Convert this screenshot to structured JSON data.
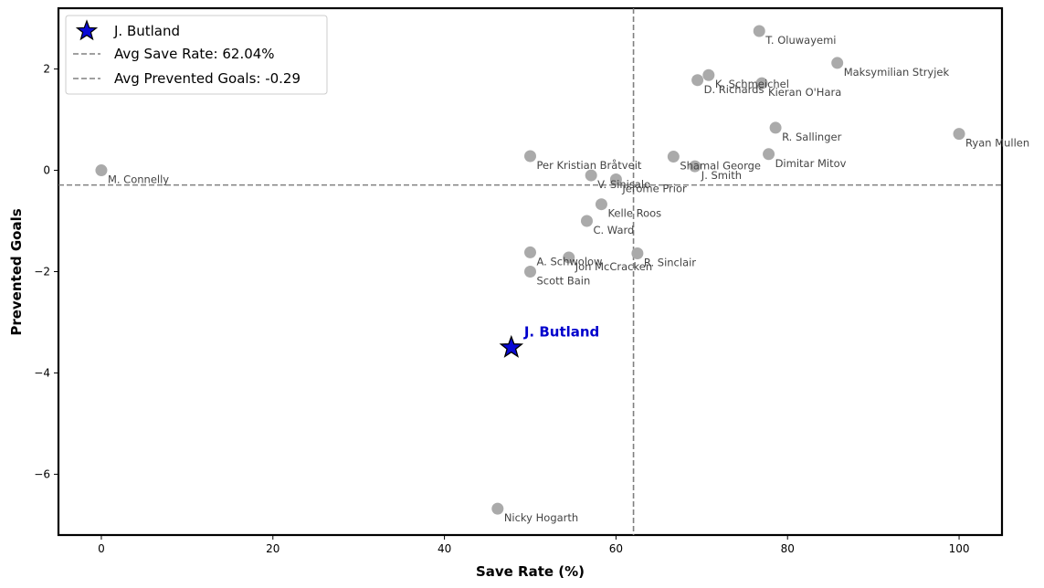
{
  "chart_data": {
    "type": "scatter",
    "xlabel": "Save Rate (%)",
    "ylabel": "Prevented Goals",
    "xlim": [
      -5,
      105
    ],
    "ylim": [
      -7.2,
      3.2
    ],
    "xticks": [
      0,
      20,
      40,
      60,
      80,
      100
    ],
    "yticks": [
      -6,
      -4,
      -2,
      0,
      2
    ],
    "grid": false,
    "legend_placement": "top-left",
    "colors": {
      "points": "#aaaaaa",
      "highlight": "#0a0ad6",
      "highlight_label": "#0000cc",
      "reference_lines": "#808080"
    },
    "reference_lines": {
      "avg_save_rate": 62.04,
      "avg_prevented_goals": -0.29
    },
    "legend": [
      {
        "label": "J. Butland",
        "marker": "star"
      },
      {
        "label": "Avg Save Rate: 62.04%",
        "marker": "dashed-line"
      },
      {
        "label": "Avg Prevented Goals: -0.29",
        "marker": "dashed-line"
      }
    ],
    "highlight": {
      "name": "J. Butland",
      "x": 47.8,
      "y": -3.5
    },
    "points": [
      {
        "name": "T. Oluwayemi",
        "x": 76.7,
        "y": 2.75
      },
      {
        "name": "Maksymilian Stryjek",
        "x": 85.8,
        "y": 2.12
      },
      {
        "name": "K. Schmeichel",
        "x": 70.8,
        "y": 1.88
      },
      {
        "name": "D. Richards",
        "x": 69.5,
        "y": 1.78
      },
      {
        "name": "Kieran O'Hara",
        "x": 77.0,
        "y": 1.72
      },
      {
        "name": "R. Sallinger",
        "x": 78.6,
        "y": 0.84
      },
      {
        "name": "Ryan Mullen",
        "x": 100.0,
        "y": 0.72
      },
      {
        "name": "Dimitar Mitov",
        "x": 77.8,
        "y": 0.32
      },
      {
        "name": "Shamal George",
        "x": 66.7,
        "y": 0.27
      },
      {
        "name": "J. Smith",
        "x": 69.2,
        "y": 0.08
      },
      {
        "name": "Per Kristian Bråtveit",
        "x": 50.0,
        "y": 0.28
      },
      {
        "name": "M. Connelly",
        "x": 0.0,
        "y": 0.0
      },
      {
        "name": "V. Sinisalo",
        "x": 57.1,
        "y": -0.1
      },
      {
        "name": "Jerome Prior",
        "x": 60.0,
        "y": -0.18
      },
      {
        "name": "Kelle Roos",
        "x": 58.3,
        "y": -0.67
      },
      {
        "name": "C. Ward",
        "x": 56.6,
        "y": -1.0
      },
      {
        "name": "A. Schwolow",
        "x": 50.0,
        "y": -1.62
      },
      {
        "name": "Jon McCracken",
        "x": 54.5,
        "y": -1.72
      },
      {
        "name": "R. Sinclair",
        "x": 62.5,
        "y": -1.64
      },
      {
        "name": "Scott Bain",
        "x": 50.0,
        "y": -2.0
      },
      {
        "name": "Nicky Hogarth",
        "x": 46.2,
        "y": -6.68
      }
    ]
  }
}
